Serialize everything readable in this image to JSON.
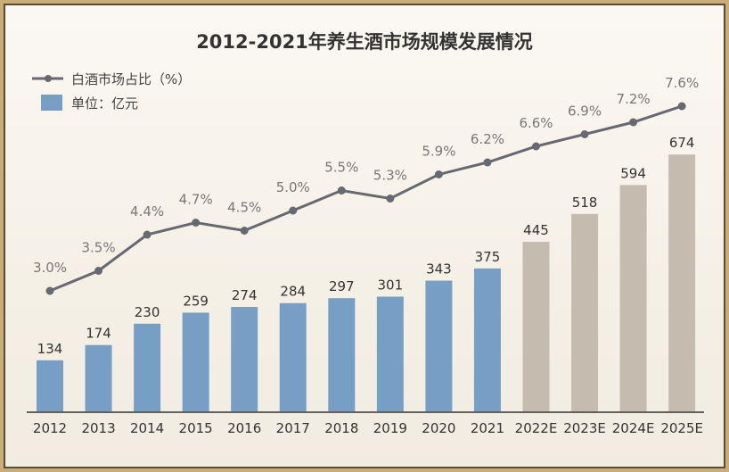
{
  "chart_data": {
    "type": "bar+line",
    "title": "2012-2021年养生酒市场规模发展情况",
    "categories": [
      "2012",
      "2013",
      "2014",
      "2015",
      "2016",
      "2017",
      "2018",
      "2019",
      "2020",
      "2021",
      "2022E",
      "2023E",
      "2024E",
      "2025E"
    ],
    "series": [
      {
        "name": "单位：亿元",
        "type": "bar",
        "values": [
          134,
          174,
          230,
          259,
          274,
          284,
          297,
          301,
          343,
          375,
          445,
          518,
          594,
          674
        ]
      },
      {
        "name": "白酒市场占比（%）",
        "type": "line",
        "values": [
          3.0,
          3.5,
          4.4,
          4.7,
          4.5,
          5.0,
          5.5,
          5.3,
          5.9,
          6.2,
          6.6,
          6.9,
          7.2,
          7.6
        ],
        "labels": [
          "3.0%",
          "3.5%",
          "4.4%",
          "4.7%",
          "4.5%",
          "5.0%",
          "5.5%",
          "5.3%",
          "5.9%",
          "6.2%",
          "6.6%",
          "6.9%",
          "7.2%",
          "7.6%"
        ]
      }
    ],
    "legend": {
      "line": "白酒市场占比（%）",
      "bar": "单位：亿元",
      "placement": "top-left"
    },
    "colors": {
      "actual": "#779fc6",
      "forecast": "#c5bcaf",
      "line": "#666a70",
      "text": "#333333",
      "label": "#777777"
    }
  }
}
